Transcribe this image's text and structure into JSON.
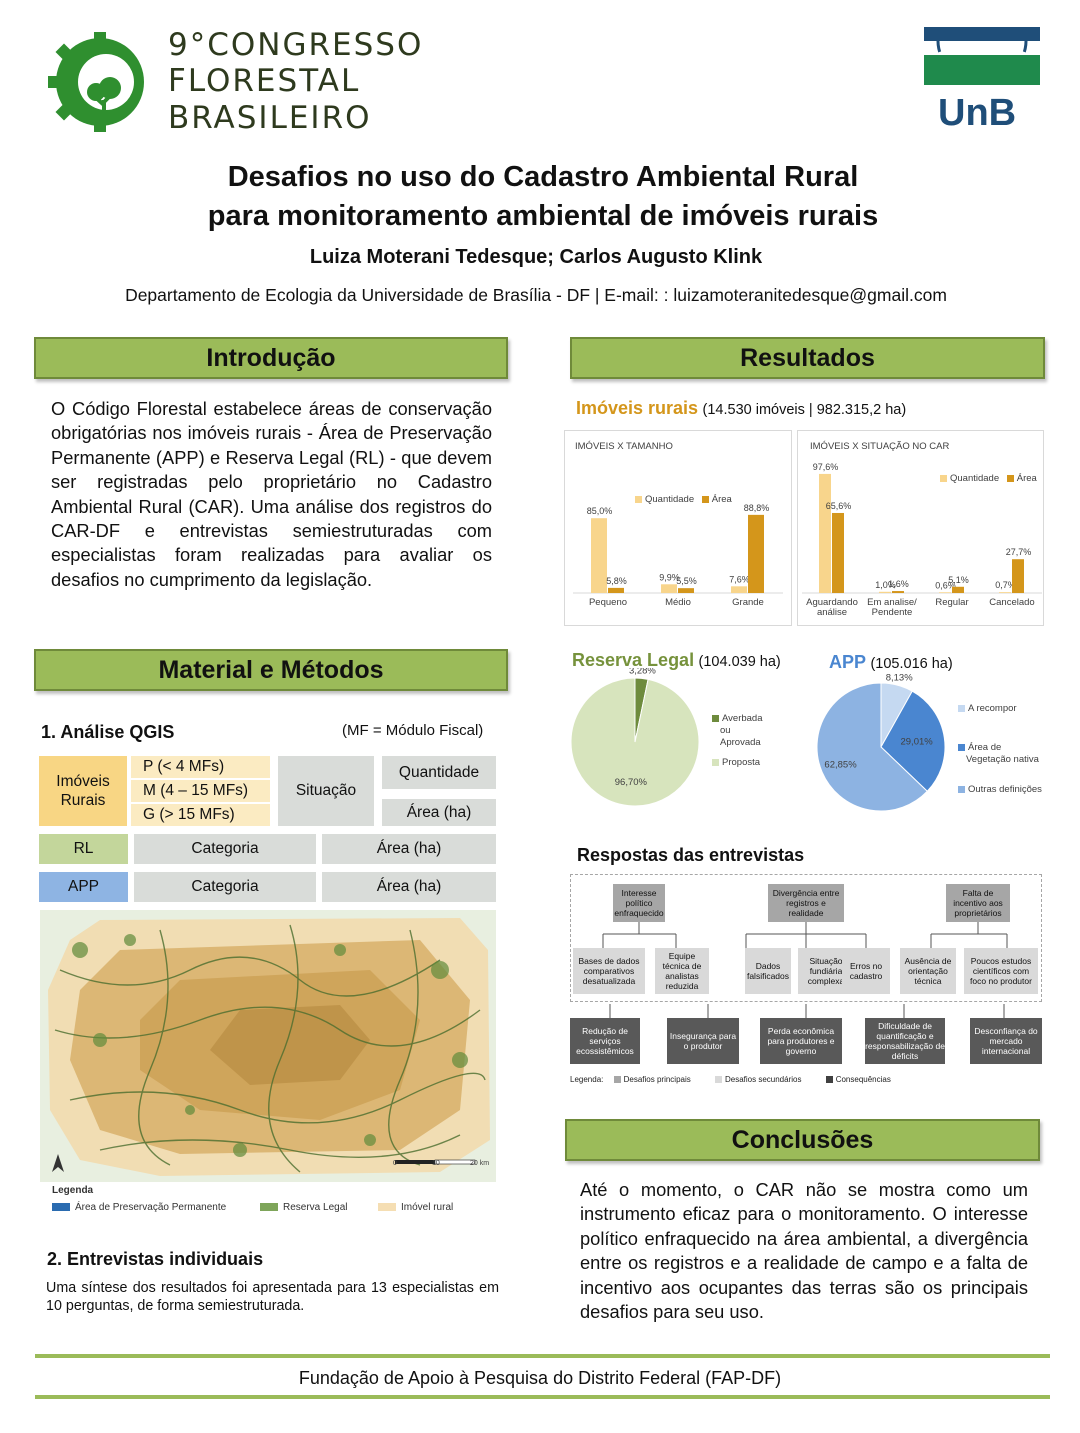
{
  "header": {
    "congress_line1": "9°CONGRESSO",
    "congress_line2": "FLORESTAL",
    "congress_line3": "BRASILEIRO",
    "unb_label": "UnB",
    "title_line1": "Desafios no uso do Cadastro Ambiental Rural",
    "title_line2": "para monitoramento ambiental de imóveis rurais",
    "authors": "Luiza Moterani Tedesque; Carlos Augusto Klink",
    "affiliation": "Departamento de Ecologia da Universidade de Brasília - DF | E-mail: : luizamoteranitedesque@gmail.com"
  },
  "intro": {
    "heading": "Introdução",
    "text": "O Código Florestal estabelece áreas de conservação obrigatórias nos imóveis rurais - Área de Preservação Permanente (APP) e Reserva Legal (RL) - que devem ser registradas pelo proprietário no Cadastro Ambiental Rural (CAR). Uma análise dos registros do CAR-DF e entrevistas semiestruturadas com especialistas foram realizadas para avaliar os desafios no cumprimento da legislação."
  },
  "methods": {
    "heading": "Material e Métodos",
    "sub1": "1. Análise QGIS",
    "mf_note": "(MF = Módulo Fiscal)",
    "table": {
      "imoveis": "Imóveis Rurais",
      "p": "P (< 4 MFs)",
      "m": "M  (4 – 15 MFs)",
      "g": "G (> 15 MFs)",
      "situacao": "Situação",
      "quantidade": "Quantidade",
      "area": "Área (ha)",
      "rl": "RL",
      "app": "APP",
      "categoria": "Categoria"
    },
    "map_legend": {
      "title": "Legenda",
      "app": "Área de Preservação Permanente",
      "rl": "Reserva Legal",
      "imovel": "Imóvel rural",
      "scale_0": "0",
      "scale_10": "10",
      "scale_20": "20 km"
    },
    "sub2": "2. Entrevistas individuais",
    "text2": "Uma síntese dos resultados foi apresentada para 13 especialistas em 10 perguntas, de forma semiestruturada."
  },
  "results": {
    "heading": "Resultados",
    "imoveis_label": "Imóveis rurais",
    "imoveis_detail": "(14.530 imóveis | 982.315,2 ha)",
    "rl_label": "Reserva Legal",
    "rl_detail": "(104.039 ha)",
    "app_label": "APP",
    "app_detail": "(105.016 ha)",
    "interviews_label": "Respostas das entrevistas"
  },
  "colors": {
    "quantidade": "#f8d58c",
    "area": "#d4961b",
    "rl_averbada": "#6e8b3d",
    "rl_proposta": "#d7e4bd",
    "app_recompor": "#c5d9f1",
    "app_vegetacao": "#4a86d0",
    "app_outras": "#8db3e2",
    "accent_green": "#9bbb59"
  },
  "chart_data": [
    {
      "type": "bar",
      "title": "IMÓVEIS X TAMANHO",
      "categories": [
        "Pequeno",
        "Médio",
        "Grande"
      ],
      "series": [
        {
          "name": "Quantidade",
          "values": [
            85.0,
            9.9,
            7.6
          ],
          "labels": [
            "85,0%",
            "9,9%",
            "7,6%"
          ]
        },
        {
          "name": "Área",
          "values": [
            5.8,
            5.5,
            88.8
          ],
          "labels": [
            "5,8%",
            "5,5%",
            "88,8%"
          ]
        }
      ],
      "legend": "top-right"
    },
    {
      "type": "bar",
      "title": "IMÓVEIS X SITUAÇÃO NO CAR",
      "categories": [
        "Aguardando análise",
        "Em analise/ Pendente",
        "Regular",
        "Cancelado"
      ],
      "series": [
        {
          "name": "Quantidade",
          "values": [
            97.6,
            1.0,
            0.6,
            0.7
          ],
          "labels": [
            "97,6%",
            "1,0%",
            "0,6%",
            "0,7%"
          ]
        },
        {
          "name": "Área",
          "values": [
            65.6,
            1.6,
            5.1,
            27.7
          ],
          "labels": [
            "65,6%",
            "1,6%",
            "5,1%",
            "27,7%"
          ]
        }
      ],
      "legend": "top-right"
    },
    {
      "type": "pie",
      "categories": [
        "Averbada ou Aprovada",
        "Proposta"
      ],
      "values": [
        3.28,
        96.7
      ],
      "labels": [
        "3,28%",
        "96,70%"
      ],
      "legend_averbada_1": "Averbada",
      "legend_averbada_2": "ou",
      "legend_averbada_3": "Aprovada",
      "legend_proposta": "Proposta"
    },
    {
      "type": "pie",
      "categories": [
        "A recompor",
        "Área de Vegetação nativa",
        "Outras definições"
      ],
      "values": [
        8.13,
        29.01,
        62.85
      ],
      "labels": [
        "8,13%",
        "29,01%",
        "62,85%"
      ],
      "legend_recompor": "A recompor",
      "legend_veg_1": "Área de",
      "legend_veg_2": "Vegetação nativa",
      "legend_outras": "Outras definições"
    }
  ],
  "flowchart": {
    "main": [
      "Interesse político enfraquecido",
      "Divergência entre registros e realidade",
      "Falta de incentivo aos proprietários"
    ],
    "secondary": [
      "Bases de dados comparativos desatualizada",
      "Equipe técnica de analistas reduzida",
      "Dados falsificados",
      "Situação fundiária complexa",
      "Erros no cadastro",
      "Ausência de orientação técnica",
      "Poucos estudos científicos com foco no produtor"
    ],
    "consequences": [
      "Redução de serviços ecossistêmicos",
      "Insegurança para o produtor",
      "Perda econômica para produtores e governo",
      "Dificuldade de quantificação e responsabilização de déficits",
      "Desconfiança do mercado internacional"
    ],
    "legend_label": "Legenda:",
    "legend_main": "Desafios principais",
    "legend_sec": "Desafios secundários",
    "legend_cons": "Consequências"
  },
  "conclusions": {
    "heading": "Conclusões",
    "text": "Até o momento, o CAR não se mostra como um instrumento eficaz para o monitoramento. O interesse político enfraquecido na área ambiental, a divergência entre os registros e a realidade de campo e a falta de incentivo aos ocupantes das terras são os principais desafios para seu uso."
  },
  "footer": {
    "text": "Fundação de Apoio à Pesquisa do Distrito Federal (FAP-DF)"
  }
}
